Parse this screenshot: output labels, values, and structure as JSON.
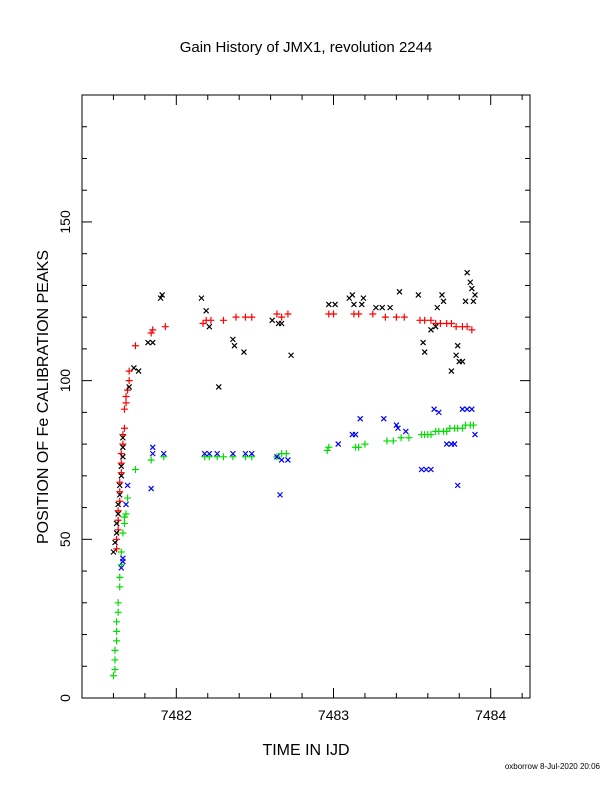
{
  "chart_data": {
    "type": "scatter",
    "title": "Gain History of JMX1, revolution 2244",
    "xlabel": "TIME IN IJD",
    "ylabel": "POSITION OF Fe CALIBRATION PEAKS",
    "xlim": [
      7481.4,
      7484.25
    ],
    "ylim": [
      0,
      190
    ],
    "x_ticks": [
      "7482",
      "7483",
      "7484"
    ],
    "x_tick_values": [
      7482,
      7483,
      7484
    ],
    "y_ticks": [
      "0",
      "50",
      "100",
      "150"
    ],
    "y_tick_values": [
      0,
      50,
      100,
      150
    ],
    "footer": "oxborrow  8-Jul-2020 20:06",
    "series": [
      {
        "color": "#ff0000",
        "marker": "plus",
        "points": [
          [
            7481.62,
            47
          ],
          [
            7481.62,
            50
          ],
          [
            7481.63,
            53
          ],
          [
            7481.63,
            56
          ],
          [
            7481.63,
            59
          ],
          [
            7481.64,
            62
          ],
          [
            7481.64,
            65
          ],
          [
            7481.64,
            68
          ],
          [
            7481.65,
            71
          ],
          [
            7481.65,
            74
          ],
          [
            7481.65,
            77
          ],
          [
            7481.66,
            80
          ],
          [
            7481.66,
            83
          ],
          [
            7481.67,
            85
          ],
          [
            7481.67,
            91
          ],
          [
            7481.68,
            93
          ],
          [
            7481.68,
            95
          ],
          [
            7481.69,
            97
          ],
          [
            7481.7,
            100
          ],
          [
            7481.7,
            103
          ],
          [
            7481.74,
            111
          ],
          [
            7481.84,
            115
          ],
          [
            7481.85,
            116
          ],
          [
            7481.93,
            117
          ],
          [
            7482.17,
            118
          ],
          [
            7482.19,
            119
          ],
          [
            7482.22,
            119
          ],
          [
            7482.3,
            119
          ],
          [
            7482.38,
            120
          ],
          [
            7482.44,
            120
          ],
          [
            7482.48,
            120
          ],
          [
            7482.64,
            121
          ],
          [
            7482.67,
            120
          ],
          [
            7482.71,
            121
          ],
          [
            7482.97,
            121
          ],
          [
            7483.0,
            121
          ],
          [
            7483.13,
            121
          ],
          [
            7483.16,
            121
          ],
          [
            7483.25,
            121
          ],
          [
            7483.33,
            120
          ],
          [
            7483.4,
            120
          ],
          [
            7483.45,
            120
          ],
          [
            7483.55,
            119
          ],
          [
            7483.58,
            119
          ],
          [
            7483.62,
            119
          ],
          [
            7483.65,
            118
          ],
          [
            7483.68,
            118
          ],
          [
            7483.72,
            118
          ],
          [
            7483.75,
            118
          ],
          [
            7483.78,
            117
          ],
          [
            7483.82,
            117
          ],
          [
            7483.85,
            117
          ],
          [
            7483.88,
            116
          ]
        ]
      },
      {
        "color": "#000000",
        "marker": "cross",
        "points": [
          [
            7481.6,
            46
          ],
          [
            7481.61,
            49
          ],
          [
            7481.62,
            52
          ],
          [
            7481.62,
            55
          ],
          [
            7481.63,
            58
          ],
          [
            7481.63,
            61
          ],
          [
            7481.64,
            64
          ],
          [
            7481.64,
            67
          ],
          [
            7481.65,
            70
          ],
          [
            7481.65,
            73
          ],
          [
            7481.66,
            76
          ],
          [
            7481.66,
            79
          ],
          [
            7481.66,
            82
          ],
          [
            7481.7,
            98
          ],
          [
            7481.73,
            104
          ],
          [
            7481.76,
            103
          ],
          [
            7481.82,
            112
          ],
          [
            7481.85,
            112
          ],
          [
            7481.9,
            126
          ],
          [
            7481.91,
            127
          ],
          [
            7482.16,
            126
          ],
          [
            7482.19,
            122
          ],
          [
            7482.21,
            117
          ],
          [
            7482.27,
            98
          ],
          [
            7482.36,
            113
          ],
          [
            7482.37,
            111
          ],
          [
            7482.43,
            109
          ],
          [
            7482.61,
            119
          ],
          [
            7482.65,
            118
          ],
          [
            7482.67,
            118
          ],
          [
            7482.73,
            108
          ],
          [
            7482.97,
            124
          ],
          [
            7483.01,
            124
          ],
          [
            7483.18,
            124
          ],
          [
            7483.1,
            126
          ],
          [
            7483.12,
            127
          ],
          [
            7483.13,
            124
          ],
          [
            7483.19,
            126
          ],
          [
            7483.27,
            123
          ],
          [
            7483.31,
            123
          ],
          [
            7483.36,
            123
          ],
          [
            7483.42,
            128
          ],
          [
            7483.54,
            127
          ],
          [
            7483.57,
            112
          ],
          [
            7483.58,
            109
          ],
          [
            7483.62,
            116
          ],
          [
            7483.65,
            117
          ],
          [
            7483.66,
            123
          ],
          [
            7483.69,
            127
          ],
          [
            7483.7,
            125
          ],
          [
            7483.75,
            103
          ],
          [
            7483.78,
            108
          ],
          [
            7483.79,
            111
          ],
          [
            7483.8,
            106
          ],
          [
            7483.82,
            106
          ],
          [
            7483.84,
            125
          ],
          [
            7483.85,
            134
          ],
          [
            7483.87,
            131
          ],
          [
            7483.88,
            129
          ],
          [
            7483.89,
            125
          ],
          [
            7483.9,
            127
          ]
        ]
      },
      {
        "color": "#00dd00",
        "marker": "plus",
        "points": [
          [
            7481.6,
            7
          ],
          [
            7481.61,
            9
          ],
          [
            7481.61,
            12
          ],
          [
            7481.61,
            15
          ],
          [
            7481.62,
            18
          ],
          [
            7481.62,
            21
          ],
          [
            7481.62,
            24
          ],
          [
            7481.63,
            27
          ],
          [
            7481.63,
            30
          ],
          [
            7481.64,
            35
          ],
          [
            7481.64,
            38
          ],
          [
            7481.65,
            42
          ],
          [
            7481.65,
            46
          ],
          [
            7481.66,
            52
          ],
          [
            7481.67,
            55
          ],
          [
            7481.67,
            57
          ],
          [
            7481.68,
            58
          ],
          [
            7481.69,
            63
          ],
          [
            7481.74,
            72
          ],
          [
            7481.84,
            75
          ],
          [
            7481.92,
            76
          ],
          [
            7482.18,
            76
          ],
          [
            7482.21,
            76
          ],
          [
            7482.26,
            76
          ],
          [
            7482.3,
            76
          ],
          [
            7482.36,
            76
          ],
          [
            7482.44,
            76
          ],
          [
            7482.48,
            76
          ],
          [
            7482.64,
            76
          ],
          [
            7482.67,
            77
          ],
          [
            7482.7,
            77
          ],
          [
            7482.96,
            78
          ],
          [
            7482.97,
            79
          ],
          [
            7483.14,
            79
          ],
          [
            7483.16,
            79
          ],
          [
            7483.2,
            80
          ],
          [
            7483.34,
            81
          ],
          [
            7483.38,
            81
          ],
          [
            7483.43,
            82
          ],
          [
            7483.48,
            82
          ],
          [
            7483.56,
            83
          ],
          [
            7483.58,
            83
          ],
          [
            7483.6,
            83
          ],
          [
            7483.62,
            83
          ],
          [
            7483.65,
            84
          ],
          [
            7483.67,
            84
          ],
          [
            7483.7,
            84
          ],
          [
            7483.72,
            84
          ],
          [
            7483.74,
            85
          ],
          [
            7483.77,
            85
          ],
          [
            7483.79,
            85
          ],
          [
            7483.82,
            85
          ],
          [
            7483.84,
            86
          ],
          [
            7483.87,
            86
          ],
          [
            7483.89,
            86
          ]
        ]
      },
      {
        "color": "#0000ff",
        "marker": "cross",
        "points": [
          [
            7481.65,
            41
          ],
          [
            7481.66,
            43
          ],
          [
            7481.66,
            44
          ],
          [
            7481.68,
            61
          ],
          [
            7481.69,
            67
          ],
          [
            7481.84,
            66
          ],
          [
            7481.85,
            79
          ],
          [
            7481.85,
            77
          ],
          [
            7481.92,
            77
          ],
          [
            7482.18,
            77
          ],
          [
            7482.21,
            77
          ],
          [
            7482.26,
            77
          ],
          [
            7482.36,
            77
          ],
          [
            7482.44,
            77
          ],
          [
            7482.48,
            77
          ],
          [
            7482.64,
            76
          ],
          [
            7482.66,
            64
          ],
          [
            7482.67,
            75
          ],
          [
            7482.71,
            75
          ],
          [
            7483.03,
            80
          ],
          [
            7483.12,
            83
          ],
          [
            7483.14,
            83
          ],
          [
            7483.17,
            88
          ],
          [
            7483.32,
            88
          ],
          [
            7483.4,
            86
          ],
          [
            7483.41,
            85
          ],
          [
            7483.46,
            84
          ],
          [
            7483.56,
            72
          ],
          [
            7483.59,
            72
          ],
          [
            7483.62,
            72
          ],
          [
            7483.64,
            91
          ],
          [
            7483.67,
            90
          ],
          [
            7483.72,
            80
          ],
          [
            7483.75,
            80
          ],
          [
            7483.77,
            80
          ],
          [
            7483.79,
            67
          ],
          [
            7483.82,
            91
          ],
          [
            7483.85,
            91
          ],
          [
            7483.88,
            91
          ],
          [
            7483.9,
            83
          ]
        ]
      }
    ]
  }
}
